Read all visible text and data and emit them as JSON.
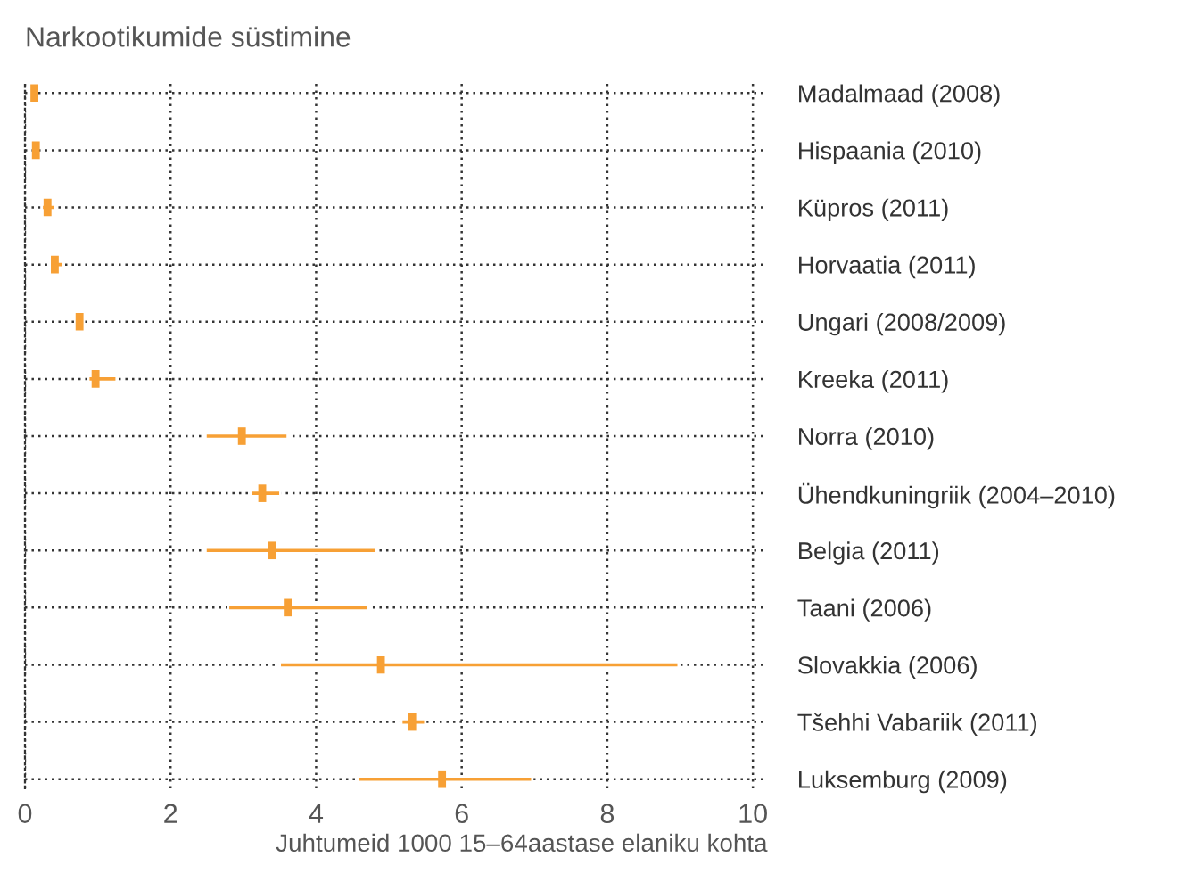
{
  "chart_data": {
    "type": "bar",
    "orientation": "horizontal",
    "title": "Narkootikumide süstimine",
    "xlabel": "Juhtumeid 1000 15–64aastase elaniku kohta",
    "categories": [
      "Madalmaad (2008)",
      "Hispaania (2010)",
      "Küpros (2011)",
      "Horvaatia (2011)",
      "Ungari (2008/2009)",
      "Kreeka (2011)",
      "Norra (2010)",
      "Ühendkuningriik (2004–2010)",
      "Belgia (2011)",
      "Taani (2006)",
      "Slovakkia (2006)",
      "Tšehhi Vabariik (2011)",
      "Luksemburg (2009)"
    ],
    "series": [
      {
        "color": "#f7a035",
        "base": [
          null,
          null,
          0.23,
          0.34,
          null,
          0.87,
          2.48,
          3.1,
          2.48,
          2.79,
          3.5,
          5.17,
          4.57
        ],
        "values": [
          null,
          null,
          0.19,
          0.19,
          null,
          0.39,
          1.13,
          0.41,
          2.35,
          1.93,
          5.48,
          0.33,
          2.4
        ]
      },
      {
        "type": "scatter",
        "color": "#f7a035",
        "x": [
          "Madalmaad (2008)",
          "Hispaania (2010)",
          "Küpros (2011)",
          "Horvaatia (2011)",
          "Ungari (2008/2009)",
          "Kreeka (2011)",
          "Norra (2010)",
          "Ühendkuningriik (2004–2010)",
          "Belgia (2011)",
          "Taani (2006)",
          "Slovakkia (2006)",
          "Tšehhi Vabariik (2011)",
          "Luksemburg (2009)"
        ],
        "values": [
          0.13,
          0.15,
          0.31,
          0.41,
          0.75,
          0.97,
          2.98,
          3.26,
          3.39,
          3.61,
          4.89,
          5.32,
          5.73
        ]
      }
    ],
    "xlim": [
      0,
      10.2
    ],
    "xticks": [
      0,
      2,
      4,
      6,
      8,
      10
    ],
    "grid": true
  }
}
